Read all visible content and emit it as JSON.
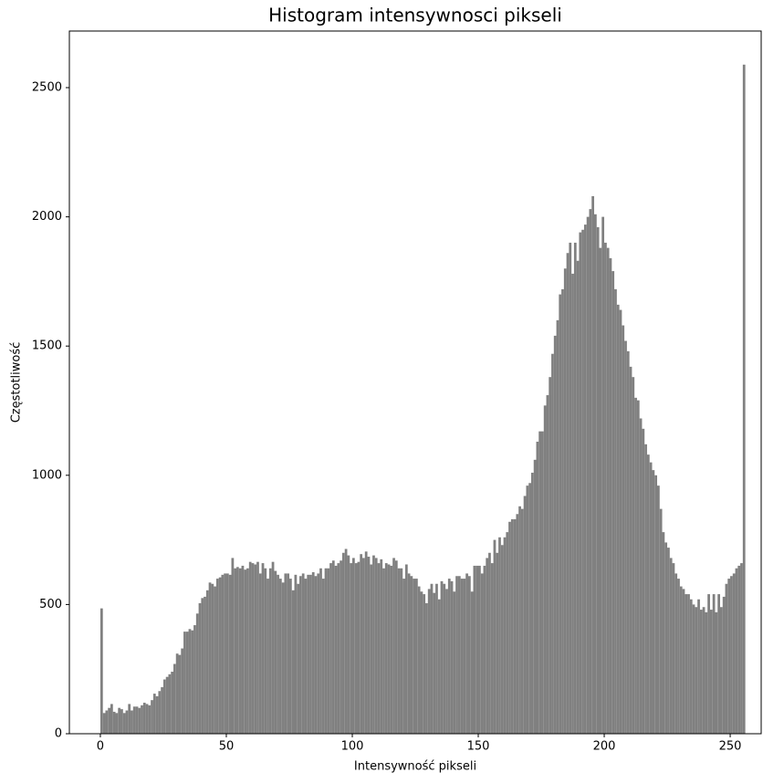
{
  "chart_data": {
    "type": "histogram",
    "title": "Histogram intensywnosci pikseli",
    "x_label": "Intensywność pikseli",
    "y_label": "Częstotliwość",
    "color": "#808080",
    "bins": [
      0,
      1,
      2,
      3,
      4,
      5,
      6,
      7,
      8,
      9,
      10,
      11,
      12,
      13,
      14,
      15,
      16,
      17,
      18,
      19,
      20,
      21,
      22,
      23,
      24,
      25,
      26,
      27,
      28,
      29,
      30,
      31,
      32,
      33,
      34,
      35,
      36,
      37,
      38,
      39,
      40,
      41,
      42,
      43,
      44,
      45,
      46,
      47,
      48,
      49,
      50,
      51,
      52,
      53,
      54,
      55,
      56,
      57,
      58,
      59,
      60,
      61,
      62,
      63,
      64,
      65,
      66,
      67,
      68,
      69,
      70,
      71,
      72,
      73,
      74,
      75,
      76,
      77,
      78,
      79,
      80,
      81,
      82,
      83,
      84,
      85,
      86,
      87,
      88,
      89,
      90,
      91,
      92,
      93,
      94,
      95,
      96,
      97,
      98,
      99,
      100,
      101,
      102,
      103,
      104,
      105,
      106,
      107,
      108,
      109,
      110,
      111,
      112,
      113,
      114,
      115,
      116,
      117,
      118,
      119,
      120,
      121,
      122,
      123,
      124,
      125,
      126,
      127,
      128,
      129,
      130,
      131,
      132,
      133,
      134,
      135,
      136,
      137,
      138,
      139,
      140,
      141,
      142,
      143,
      144,
      145,
      146,
      147,
      148,
      149,
      150,
      151,
      152,
      153,
      154,
      155,
      156,
      157,
      158,
      159,
      160,
      161,
      162,
      163,
      164,
      165,
      166,
      167,
      168,
      169,
      170,
      171,
      172,
      173,
      174,
      175,
      176,
      177,
      178,
      179,
      180,
      181,
      182,
      183,
      184,
      185,
      186,
      187,
      188,
      189,
      190,
      191,
      192,
      193,
      194,
      195,
      196,
      197,
      198,
      199,
      200,
      201,
      202,
      203,
      204,
      205,
      206,
      207,
      208,
      209,
      210,
      211,
      212,
      213,
      214,
      215,
      216,
      217,
      218,
      219,
      220,
      221,
      222,
      223,
      224,
      225,
      226,
      227,
      228,
      229,
      230,
      231,
      232,
      233,
      234,
      235,
      236,
      237,
      238,
      239,
      240,
      241,
      242,
      243,
      244,
      245,
      246,
      247,
      248,
      249,
      250,
      251,
      252,
      253,
      254,
      255,
      256
    ],
    "values": [
      485,
      80,
      90,
      100,
      115,
      85,
      80,
      100,
      95,
      80,
      90,
      115,
      90,
      105,
      105,
      100,
      110,
      120,
      115,
      110,
      130,
      155,
      145,
      165,
      180,
      210,
      220,
      230,
      240,
      270,
      310,
      305,
      330,
      395,
      395,
      405,
      400,
      420,
      465,
      505,
      525,
      530,
      555,
      585,
      580,
      570,
      600,
      605,
      615,
      620,
      620,
      615,
      680,
      640,
      645,
      640,
      650,
      635,
      640,
      665,
      660,
      655,
      665,
      620,
      660,
      640,
      600,
      640,
      665,
      630,
      615,
      600,
      585,
      620,
      620,
      600,
      555,
      615,
      580,
      610,
      620,
      600,
      615,
      615,
      625,
      610,
      620,
      640,
      600,
      640,
      640,
      660,
      670,
      650,
      660,
      670,
      700,
      715,
      690,
      660,
      680,
      660,
      665,
      695,
      680,
      705,
      685,
      655,
      690,
      680,
      660,
      675,
      640,
      660,
      655,
      650,
      680,
      670,
      640,
      640,
      600,
      655,
      620,
      610,
      600,
      600,
      570,
      550,
      540,
      505,
      560,
      580,
      545,
      580,
      520,
      590,
      580,
      560,
      600,
      590,
      550,
      610,
      610,
      600,
      600,
      620,
      610,
      550,
      650,
      650,
      650,
      620,
      650,
      680,
      700,
      660,
      750,
      700,
      760,
      730,
      760,
      780,
      820,
      830,
      830,
      850,
      880,
      870,
      920,
      960,
      970,
      1010,
      1060,
      1130,
      1170,
      1170,
      1270,
      1310,
      1380,
      1470,
      1540,
      1600,
      1700,
      1720,
      1800,
      1860,
      1900,
      1780,
      1900,
      1830,
      1940,
      1950,
      1970,
      2000,
      2030,
      2080,
      2010,
      1960,
      1880,
      2000,
      1900,
      1880,
      1840,
      1790,
      1720,
      1660,
      1640,
      1580,
      1520,
      1480,
      1420,
      1380,
      1300,
      1290,
      1220,
      1180,
      1120,
      1080,
      1050,
      1020,
      1000,
      960,
      870,
      780,
      740,
      720,
      680,
      660,
      620,
      600,
      570,
      560,
      540,
      540,
      520,
      500,
      490,
      520,
      480,
      490,
      470,
      540,
      480,
      540,
      470,
      540,
      490,
      530,
      580,
      600,
      610,
      620,
      640,
      650,
      660,
      2589
    ],
    "xlim": [
      -12.3,
      262.3
    ],
    "xticks": [
      0,
      50,
      100,
      150,
      200,
      250
    ],
    "ylim": [
      0,
      2719
    ],
    "yticks": [
      0,
      500,
      1000,
      1500,
      2000,
      2500
    ]
  }
}
